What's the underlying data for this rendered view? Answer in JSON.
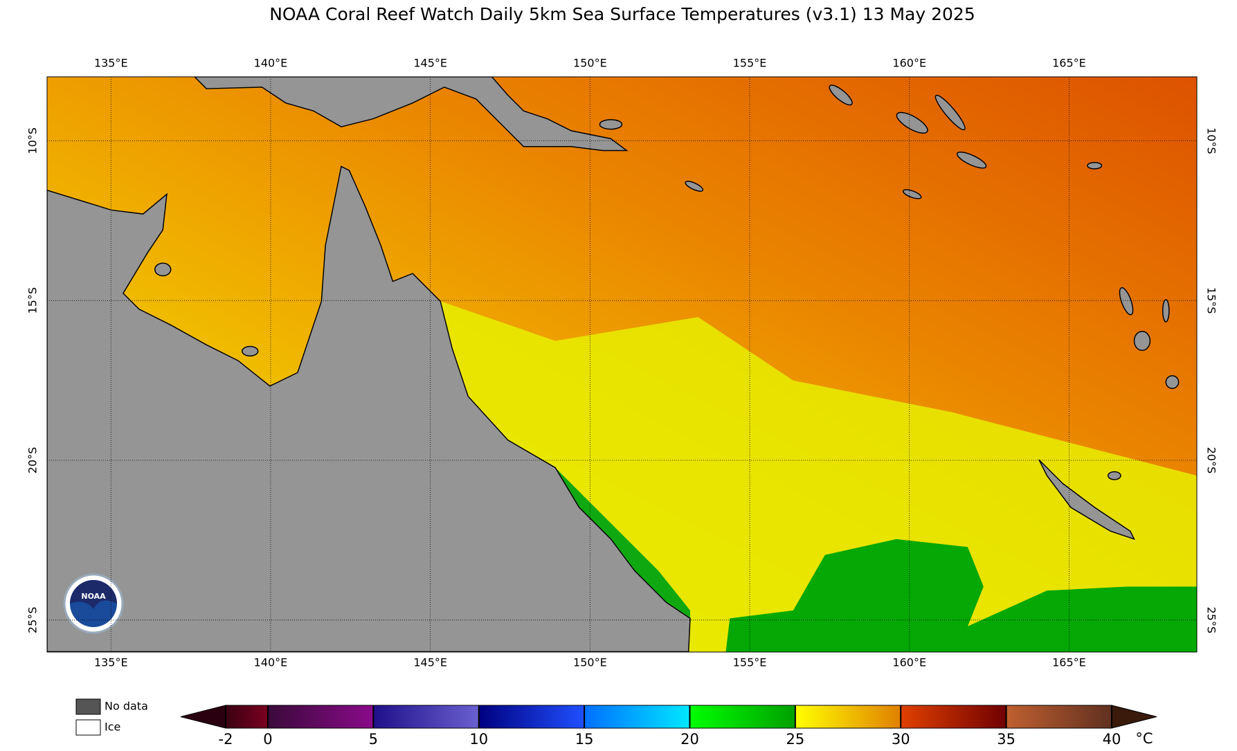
{
  "header": {
    "title": "NOAA Coral Reef Watch Daily 5km Sea Surface Temperatures  (v3.1)   13 May 2025"
  },
  "map": {
    "xlim": [
      133,
      169
    ],
    "ylim": [
      -26,
      -8
    ],
    "xticks": [
      {
        "value": 135,
        "label": "135°E"
      },
      {
        "value": 140,
        "label": "140°E"
      },
      {
        "value": 145,
        "label": "145°E"
      },
      {
        "value": 150,
        "label": "150°E"
      },
      {
        "value": 155,
        "label": "155°E"
      },
      {
        "value": 160,
        "label": "160°E"
      },
      {
        "value": 165,
        "label": "165°E"
      }
    ],
    "yticks": [
      {
        "value": -10,
        "label": "10°S"
      },
      {
        "value": -15,
        "label": "15°S"
      },
      {
        "value": -20,
        "label": "20°S"
      },
      {
        "value": -25,
        "label": "25°S"
      }
    ],
    "grid": true,
    "logo_text": "NOAA"
  },
  "legend": {
    "no_data": "No data",
    "ice": "Ice"
  },
  "colorbar": {
    "range": [
      -2,
      40
    ],
    "ticks": [
      -2,
      0,
      5,
      10,
      15,
      20,
      25,
      30,
      35,
      40
    ],
    "unit": "°C",
    "under_color": "#2a0010",
    "over_color": "#3a1a0a",
    "segment_colors": [
      [
        "#3a0012",
        "#7a0020"
      ],
      [
        "#3a0a3a",
        "#8a0a8a"
      ],
      [
        "#20108a",
        "#6a60d0"
      ],
      [
        "#000080",
        "#2050ff"
      ],
      [
        "#0070ff",
        "#00e8ff"
      ],
      [
        "#00ff00",
        "#00a000"
      ],
      [
        "#ffff00",
        "#e08000"
      ],
      [
        "#e04000",
        "#700000"
      ],
      [
        "#c06030",
        "#603020"
      ]
    ]
  }
}
